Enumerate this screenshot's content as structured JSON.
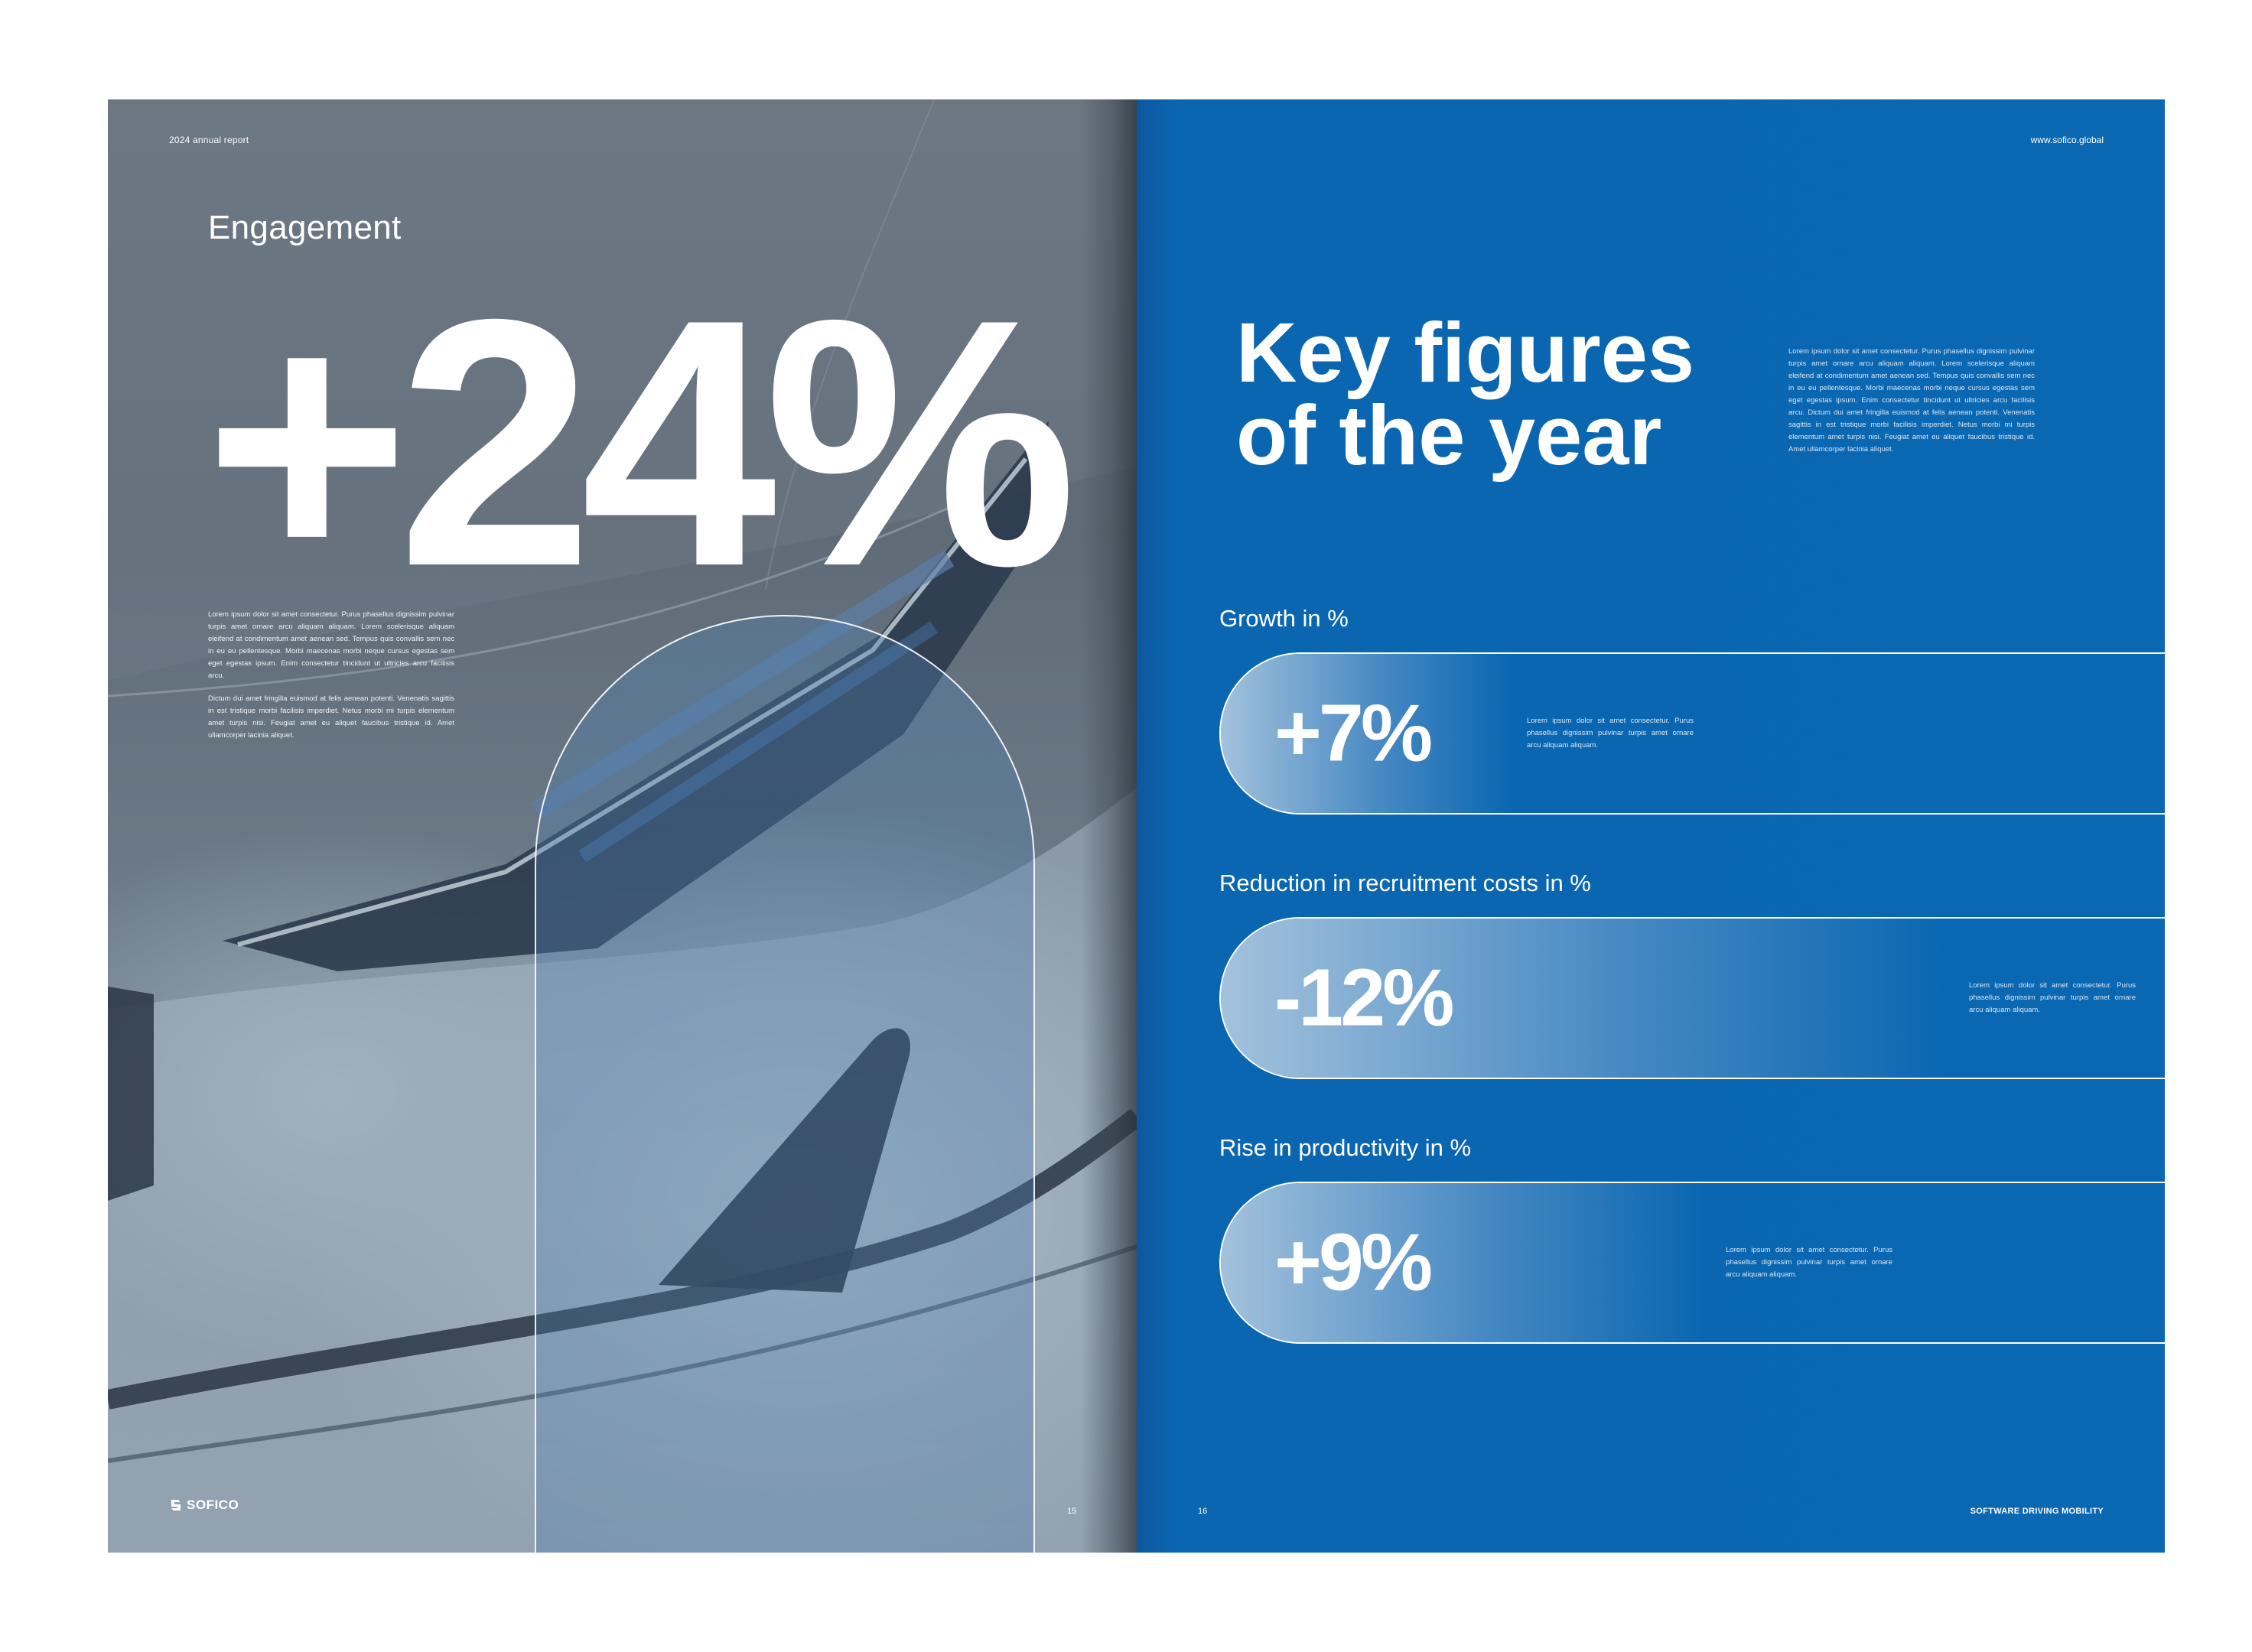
{
  "left_page": {
    "header": "2024 annual report",
    "title": "Engagement",
    "big_figure": "+24%",
    "body": [
      "Lorem ipsum dolor sit amet consectetur. Purus phasellus dignissim pulvinar turpis amet ornare arcu aliquam aliquam. Lorem scelerisque aliquam eleifend at condimentum amet aenean sed. Tempus quis convallis sem nec in eu eu pellentesque. Morbi maecenas morbi neque cursus egestas sem eget egestas ipsum. Enim consectetur tincidunt ut ultricies arcu facilisis arcu.",
      "Dictum dui amet fringilla euismod at felis aenean potenti. Venenatis sagittis in est tristique morbi facilisis imperdiet. Netus morbi mi turpis elementum amet turpis nisi. Feugiat amet eu aliquet faucibus tristique id. Amet ullamcorper lacinia aliquet."
    ],
    "logo_text": "SOFICO",
    "page_number": "15"
  },
  "right_page": {
    "url": "www.sofico.global",
    "title_line1": "Key figures",
    "title_line2": "of the year",
    "body": "Lorem ipsum dolor sit amet consectetur. Purus phasellus dignissim pulvinar turpis amet ornare arcu aliquam aliquam. Lorem scelerisque aliquam eleifend at condimentum amet aenean sed. Tempus quis convallis sem nec in eu eu pellentesque. Morbi maecenas morbi neque cursus egestas sem eget egestas ipsum. Enim consectetur tincidunt ut ultricies arcu facilisis arcu. Dictum dui amet fringilla euismod at felis aenean potenti. Venenatis sagittis in est tristique morbi facilisis imperdiet. Netus morbi mi turpis elementum amet turpis nisi. Feugiat amet eu aliquet faucibus tristique id. Amet ullamcorper lacinia aliquet.",
    "stats": [
      {
        "label": "Growth in %",
        "value": "+7%",
        "description": "Lorem ipsum dolor sit amet consectetur. Purus phasellus dignissim pulvinar turpis amet ornare arcu aliquam aliquam."
      },
      {
        "label": "Reduction in recruitment costs in %",
        "value": "-12%",
        "description": "Lorem ipsum dolor sit amet consectetur. Purus phasellus dignissim pulvinar turpis amet ornare arcu aliquam aliquam."
      },
      {
        "label": "Rise in productivity in %",
        "value": "+9%",
        "description": "Lorem ipsum dolor sit amet consectetur. Purus phasellus dignissim pulvinar turpis amet ornare arcu aliquam aliquam."
      }
    ],
    "page_number": "16",
    "tagline": "SOFTWARE DRIVING MOBILITY"
  },
  "colors": {
    "brand_blue": "#0a67b1",
    "text": "#ffffff"
  }
}
